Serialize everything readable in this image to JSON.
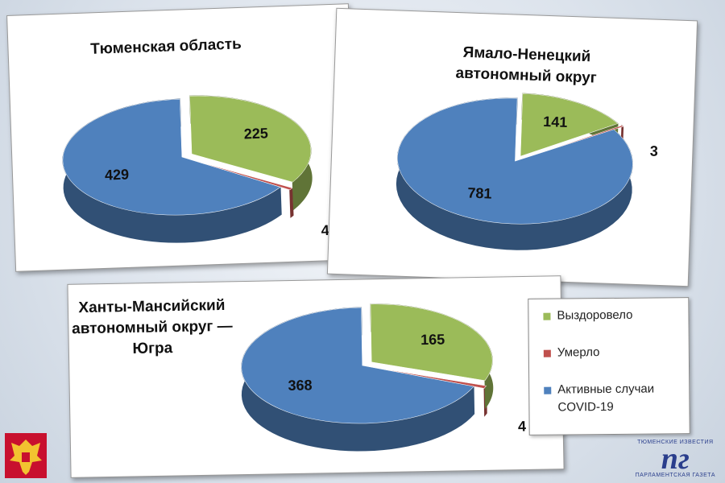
{
  "chart_data": [
    {
      "type": "pie",
      "title_lines": [
        "Тюменская область"
      ],
      "values": [
        225,
        4,
        429
      ]
    },
    {
      "type": "pie",
      "title_lines": [
        "Ямало-Ненецкий",
        "автономный округ"
      ],
      "values": [
        141,
        3,
        781
      ]
    },
    {
      "type": "pie",
      "title_lines": [
        "Ханты-Мансийский",
        "автономный округ —",
        "Югра"
      ],
      "values": [
        165,
        4,
        368
      ]
    }
  ],
  "legend": {
    "labels": [
      "Выздоровело",
      "Умерло",
      "Активные случаи COVID-19"
    ],
    "colors": [
      "#9bbb59",
      "#c0504d",
      "#4f81bd"
    ]
  },
  "branding": {
    "top": "ТЮМЕНСКИЕ ИЗВЕСТИЯ",
    "mark": "пг",
    "bottom": "ПАРЛАМЕНТСКАЯ ГАЗЕТА"
  }
}
